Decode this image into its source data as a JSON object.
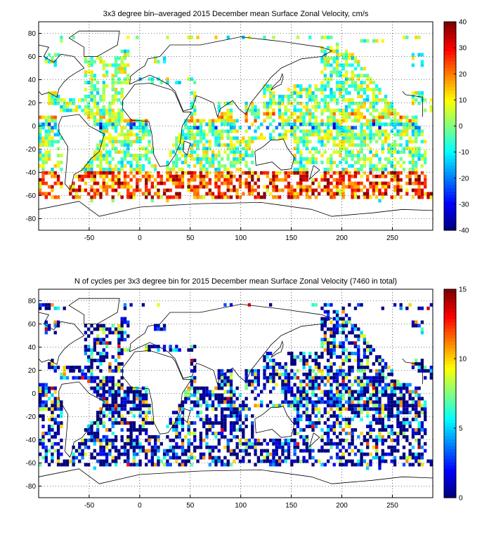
{
  "colors": {
    "coast": "#000000",
    "grid": "#000000",
    "axis": "#000000",
    "colormap": "jet"
  },
  "chart_data": [
    {
      "type": "heatmap",
      "title": "3x3 degree bin–averaged 2015 December mean Surface Zonal Velocity, cm/s",
      "xlabel": "",
      "ylabel": "",
      "xlim": [
        -100,
        290
      ],
      "ylim": [
        -90,
        90
      ],
      "xticks": [
        -50,
        0,
        50,
        100,
        150,
        200,
        250
      ],
      "yticks": [
        -80,
        -60,
        -40,
        -20,
        0,
        20,
        40,
        60,
        80
      ],
      "grid": true,
      "bin_size_deg": 3,
      "colorbar": {
        "min": -40,
        "max": 40,
        "ticks": [
          -40,
          -30,
          -20,
          -10,
          0,
          10,
          20,
          30,
          40
        ]
      },
      "values_note": ""
    },
    {
      "type": "heatmap",
      "title": "N of cycles per 3x3 degree bin for 2015 December mean Surface Zonal Velocity (7460 in total)",
      "xlabel": "",
      "ylabel": "",
      "xlim": [
        -100,
        290
      ],
      "ylim": [
        -90,
        90
      ],
      "xticks": [
        -50,
        0,
        50,
        100,
        150,
        200,
        250
      ],
      "yticks": [
        -80,
        -60,
        -40,
        -20,
        0,
        20,
        40,
        60,
        80
      ],
      "grid": true,
      "bin_size_deg": 3,
      "colorbar": {
        "min": 0,
        "max": 15,
        "ticks": [
          0,
          5,
          10,
          15
        ]
      },
      "total": 7460
    }
  ]
}
